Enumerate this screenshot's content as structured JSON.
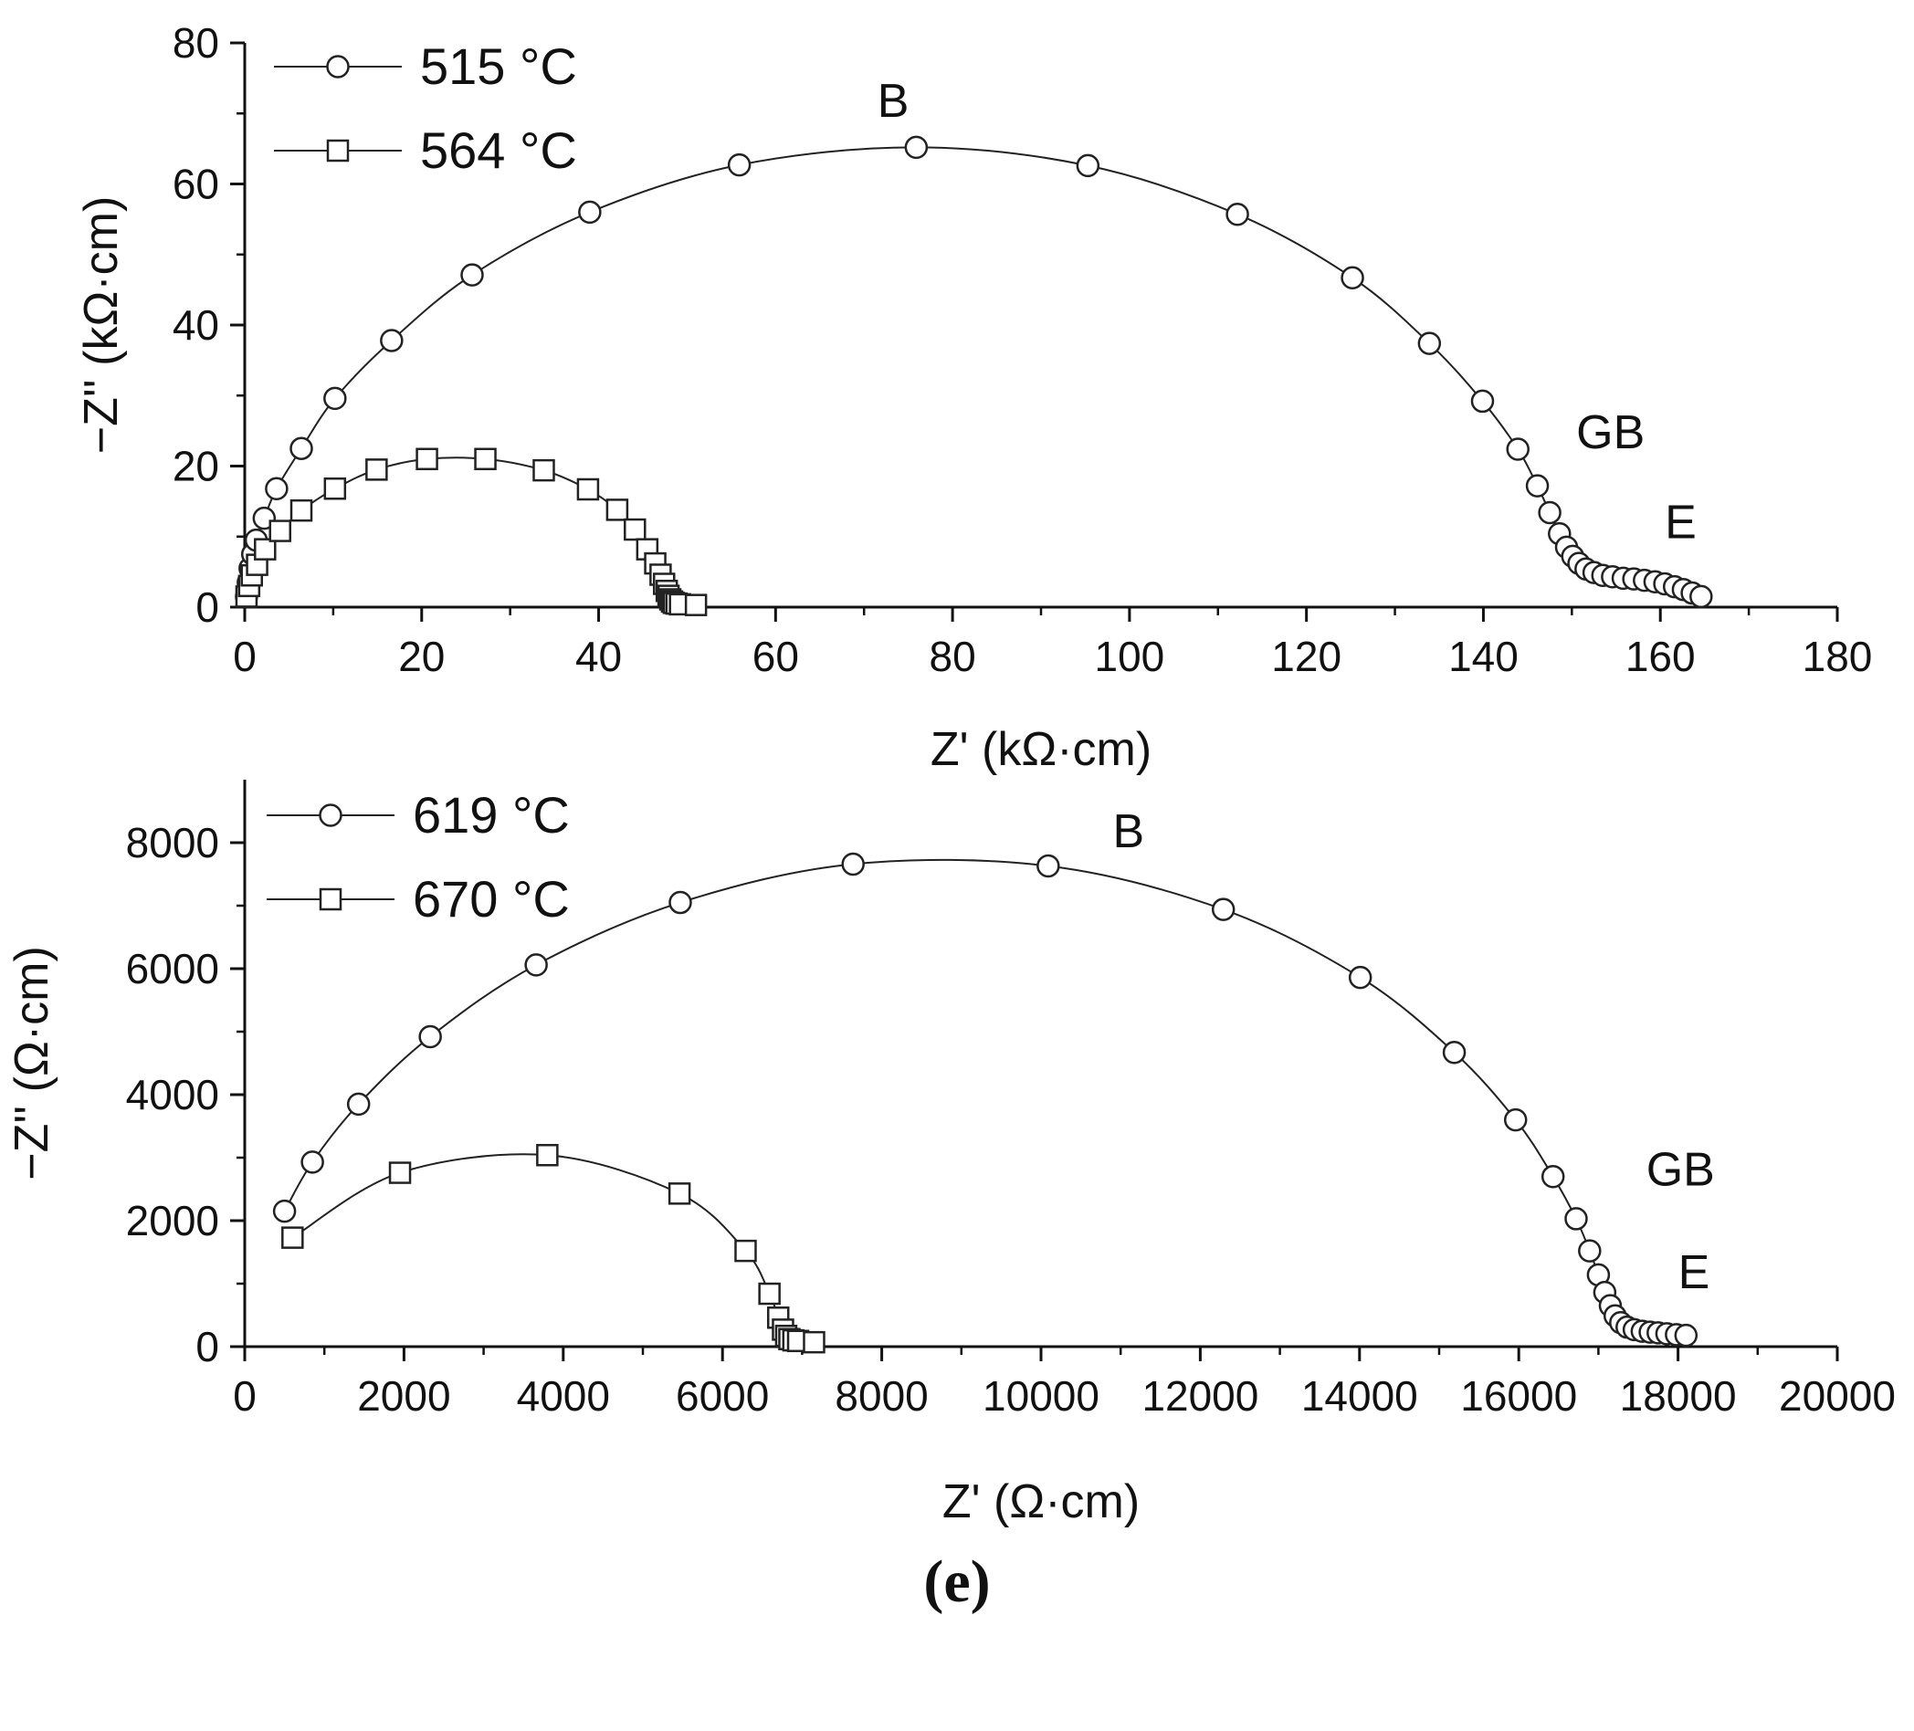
{
  "figure_label": "(e)",
  "chart_data": [
    {
      "type": "scatter",
      "xlabel": "Z' (kΩ·cm)",
      "ylabel": "−Z'' (kΩ·cm)",
      "xlim": [
        0,
        180
      ],
      "ylim": [
        0,
        80
      ],
      "xticks": [
        0,
        20,
        40,
        60,
        80,
        100,
        120,
        140,
        160,
        180
      ],
      "yticks": [
        0,
        20,
        40,
        60,
        80
      ],
      "legend_position": "top-left",
      "series": [
        {
          "name": "515 °C",
          "marker": "circle",
          "color": "#222222",
          "points": [
            [
              0.2,
              1.5
            ],
            [
              0.4,
              3.5
            ],
            [
              0.6,
              5.5
            ],
            [
              0.9,
              7.5
            ],
            [
              1.3,
              9.5
            ],
            [
              2.2,
              12.6
            ],
            [
              3.6,
              16.8
            ],
            [
              6.4,
              22.5
            ],
            [
              10.2,
              29.6
            ],
            [
              16.6,
              37.8
            ],
            [
              25.7,
              47.1
            ],
            [
              39,
              56
            ],
            [
              55.9,
              62.7
            ],
            [
              75.9,
              65.2
            ],
            [
              95.3,
              62.6
            ],
            [
              112.2,
              55.7
            ],
            [
              125.2,
              46.7
            ],
            [
              133.9,
              37.4
            ],
            [
              139.9,
              29.2
            ],
            [
              143.9,
              22.4
            ],
            [
              146.1,
              17.2
            ],
            [
              147.5,
              13.4
            ],
            [
              148.6,
              10.4
            ],
            [
              149.4,
              8.5
            ],
            [
              150.1,
              7.2
            ],
            [
              150.8,
              6.2
            ],
            [
              151.6,
              5.4
            ],
            [
              152.5,
              4.9
            ],
            [
              153.5,
              4.5
            ],
            [
              154.6,
              4.3
            ],
            [
              155.8,
              4.1
            ],
            [
              157,
              4
            ],
            [
              158.2,
              3.8
            ],
            [
              159.4,
              3.6
            ],
            [
              160.5,
              3.3
            ],
            [
              161.6,
              2.9
            ],
            [
              162.6,
              2.5
            ],
            [
              163.6,
              2
            ],
            [
              164.6,
              1.5
            ]
          ]
        },
        {
          "name": "564 °C",
          "marker": "square",
          "color": "#222222",
          "points": [
            [
              0.2,
              1.5
            ],
            [
              0.5,
              3
            ],
            [
              0.8,
              4.5
            ],
            [
              1.4,
              6
            ],
            [
              2.3,
              8.2
            ],
            [
              4,
              10.8
            ],
            [
              6.4,
              13.7
            ],
            [
              10.2,
              16.8
            ],
            [
              14.9,
              19.5
            ],
            [
              20.6,
              21
            ],
            [
              27.2,
              21
            ],
            [
              33.8,
              19.4
            ],
            [
              38.8,
              16.7
            ],
            [
              42.1,
              13.8
            ],
            [
              44.1,
              11
            ],
            [
              45.5,
              8.2
            ],
            [
              46.4,
              6.2
            ],
            [
              47,
              4.6
            ],
            [
              47.4,
              3.3
            ],
            [
              47.7,
              2.3
            ],
            [
              47.9,
              1.6
            ],
            [
              48.1,
              1.1
            ],
            [
              48.3,
              0.8
            ],
            [
              48.5,
              0.6
            ],
            [
              48.8,
              0.5
            ],
            [
              49.2,
              0.4
            ],
            [
              51,
              0.3
            ]
          ]
        }
      ],
      "annotations": [
        {
          "text": "B",
          "x": 71.5,
          "y": 69.5
        },
        {
          "text": "GB",
          "x": 150.5,
          "y": 22.5
        },
        {
          "text": "E",
          "x": 160.5,
          "y": 9.8
        }
      ]
    },
    {
      "type": "scatter",
      "xlabel": "Z' (Ω·cm)",
      "ylabel": "−Z'' (Ω·cm)",
      "xlim": [
        0,
        20000
      ],
      "ylim": [
        0,
        9000
      ],
      "xticks": [
        0,
        2000,
        4000,
        6000,
        8000,
        10000,
        12000,
        14000,
        16000,
        18000,
        20000
      ],
      "yticks": [
        0,
        2000,
        4000,
        6000,
        8000
      ],
      "legend_position": "top-left",
      "series": [
        {
          "name": "619 °C",
          "marker": "circle",
          "color": "#222222",
          "points": [
            [
              500,
              2150
            ],
            [
              850,
              2930
            ],
            [
              1430,
              3850
            ],
            [
              2330,
              4920
            ],
            [
              3660,
              6060
            ],
            [
              5470,
              7050
            ],
            [
              7640,
              7660
            ],
            [
              10090,
              7630
            ],
            [
              12290,
              6940
            ],
            [
              14010,
              5860
            ],
            [
              15190,
              4670
            ],
            [
              15960,
              3600
            ],
            [
              16430,
              2700
            ],
            [
              16720,
              2030
            ],
            [
              16890,
              1520
            ],
            [
              17000,
              1140
            ],
            [
              17080,
              860
            ],
            [
              17150,
              650
            ],
            [
              17210,
              490
            ],
            [
              17280,
              380
            ],
            [
              17360,
              310
            ],
            [
              17450,
              270
            ],
            [
              17550,
              245
            ],
            [
              17650,
              230
            ],
            [
              17750,
              220
            ],
            [
              17860,
              205
            ],
            [
              17980,
              190
            ],
            [
              18100,
              180
            ]
          ]
        },
        {
          "name": "670 °C",
          "marker": "square",
          "color": "#222222",
          "points": [
            [
              600,
              1730
            ],
            [
              1950,
              2760
            ],
            [
              3800,
              3040
            ],
            [
              5460,
              2430
            ],
            [
              6290,
              1520
            ],
            [
              6590,
              840
            ],
            [
              6700,
              460
            ],
            [
              6760,
              270
            ],
            [
              6800,
              170
            ],
            [
              6840,
              120
            ],
            [
              6890,
              100
            ],
            [
              6950,
              90
            ],
            [
              7150,
              70
            ]
          ]
        }
      ],
      "annotations": [
        {
          "text": "B",
          "x": 10900,
          "y": 7930
        },
        {
          "text": "GB",
          "x": 17600,
          "y": 2560
        },
        {
          "text": "E",
          "x": 18000,
          "y": 930
        }
      ]
    }
  ]
}
